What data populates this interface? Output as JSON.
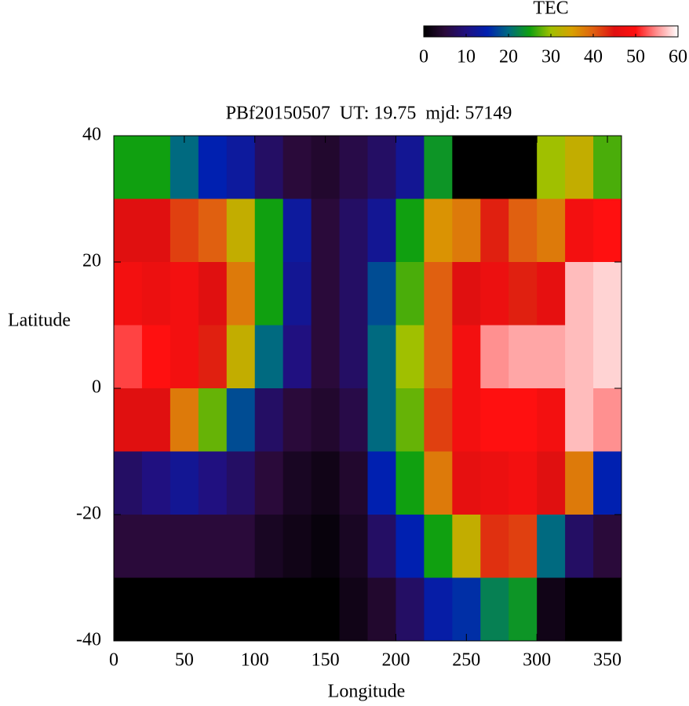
{
  "chart_data": {
    "type": "heatmap",
    "title": "PBf20150507  UT: 19.75  mjd: 57149",
    "x_label": "Longitude",
    "y_label": "Latitude",
    "colorbar_label": "TEC",
    "x": [
      10,
      30,
      50,
      70,
      90,
      110,
      130,
      150,
      170,
      190,
      210,
      230,
      250,
      270,
      290,
      310,
      330,
      350
    ],
    "y": [
      35,
      25,
      15,
      5,
      -5,
      -15,
      -25,
      -35
    ],
    "values": [
      [
        25,
        25,
        20,
        15,
        13,
        8,
        5,
        4,
        6,
        8,
        12,
        24,
        0,
        0,
        0,
        30,
        33,
        27
      ],
      [
        45,
        45,
        42,
        40,
        33,
        25,
        13,
        5,
        8,
        12,
        25,
        36,
        38,
        44,
        40,
        38,
        48,
        50
      ],
      [
        48,
        47,
        48,
        45,
        38,
        25,
        12,
        5,
        8,
        18,
        27,
        40,
        45,
        47,
        44,
        46,
        57,
        58
      ],
      [
        52,
        50,
        48,
        44,
        33,
        20,
        10,
        5,
        8,
        20,
        30,
        40,
        48,
        55,
        56,
        56,
        57,
        58
      ],
      [
        45,
        45,
        38,
        28,
        18,
        8,
        5,
        4,
        6,
        20,
        28,
        42,
        48,
        50,
        50,
        48,
        57,
        55
      ],
      [
        8,
        10,
        12,
        10,
        8,
        5,
        3,
        2,
        4,
        15,
        25,
        38,
        46,
        47,
        48,
        45,
        38,
        15
      ],
      [
        5,
        5,
        5,
        5,
        5,
        3,
        2,
        1,
        3,
        8,
        15,
        25,
        33,
        43,
        42,
        20,
        8,
        5
      ],
      [
        0,
        0,
        0,
        0,
        0,
        0,
        0,
        0,
        2,
        4,
        8,
        14,
        16,
        22,
        24,
        2,
        0,
        0
      ]
    ],
    "xlim": [
      0,
      360
    ],
    "xticks": [
      0,
      50,
      100,
      150,
      200,
      250,
      300,
      350
    ],
    "ylim": [
      -40,
      40
    ],
    "yticks": [
      -40,
      -20,
      0,
      20,
      40
    ],
    "zlim": [
      0,
      60
    ],
    "zticks": [
      0,
      10,
      20,
      30,
      40,
      50,
      60
    ],
    "colormap": [
      "#000000",
      "#2a0a3a",
      "#201080",
      "#0020b0",
      "#006a80",
      "#10a010",
      "#a0c000",
      "#d8a000",
      "#e06010",
      "#e01010",
      "#ff1010",
      "#ff9090",
      "#ffffff"
    ]
  }
}
